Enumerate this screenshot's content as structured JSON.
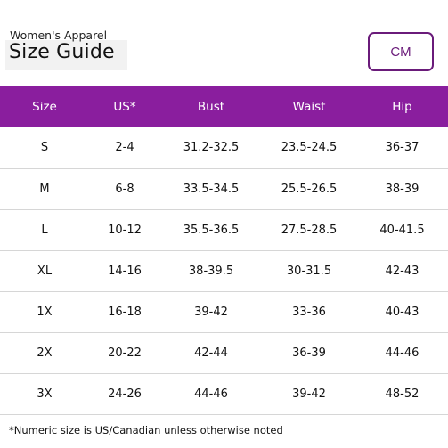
{
  "header": {
    "subtitle": "Women's Apparel",
    "title": "Size Guide",
    "unit_toggle_label": "CM"
  },
  "table": {
    "columns": [
      "Size",
      "US*",
      "Bust",
      "Waist",
      "Hip"
    ],
    "rows": [
      [
        "S",
        "2-4",
        "31.2-32.5",
        "23.5-24.5",
        "36-37"
      ],
      [
        "M",
        "6-8",
        "33.5-34.5",
        "25.5-26.5",
        "38-39"
      ],
      [
        "L",
        "10-12",
        "35.5-36.5",
        "27.5-28.5",
        "40-41.5"
      ],
      [
        "XL",
        "14-16",
        "38-39.5",
        "30-31.5",
        "42-43"
      ],
      [
        "1X",
        "16-18",
        "39-42",
        "33-36",
        "40-43"
      ],
      [
        "2X",
        "20-22",
        "42-44",
        "36-39",
        "44-46"
      ],
      [
        "3X",
        "24-26",
        "44-46",
        "39-42",
        "48-52"
      ]
    ]
  },
  "footnote": "*Numeric size is US/Canadian unless otherwise noted",
  "colors": {
    "header_bg": "#8a1e9e",
    "accent": "#6a1b7a",
    "row_divider": "#d6d6d6"
  }
}
